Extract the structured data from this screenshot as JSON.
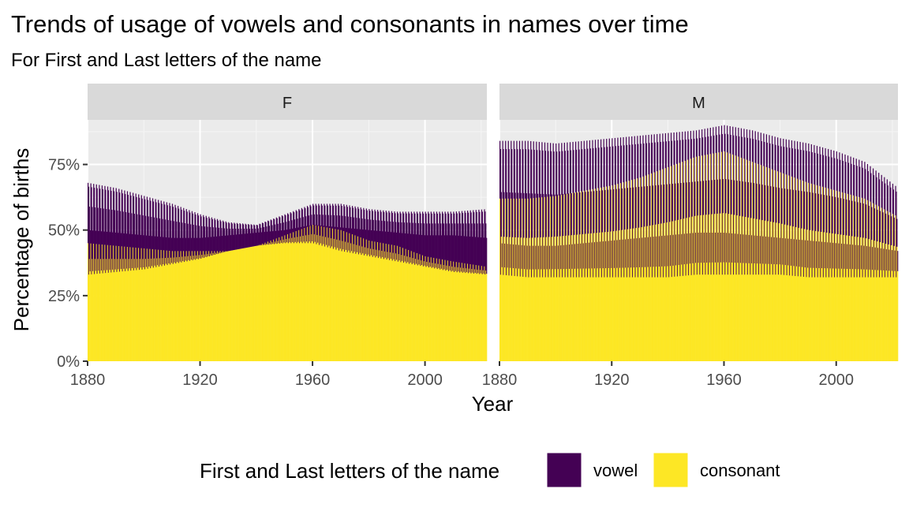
{
  "chart_data": {
    "type": "bar",
    "title": "Trends of usage of vowels and consonants in names over time",
    "subtitle": "For First and Last letters of the name",
    "xlabel": "Year",
    "ylabel": "Percentage of births",
    "xlim": [
      1880,
      2022
    ],
    "ylim": [
      0,
      0.92
    ],
    "x_ticks": [
      1880,
      1920,
      1960,
      2000
    ],
    "x_tick_labels": [
      "1880",
      "1920",
      "1960",
      "2000"
    ],
    "y_ticks": [
      0,
      0.25,
      0.5,
      0.75
    ],
    "y_tick_labels": [
      "0%",
      "25%",
      "50%",
      "75%"
    ],
    "stacked": true,
    "grid": true,
    "legend": {
      "title": "First and Last letters of the name",
      "position": "bottom",
      "entries": [
        {
          "label": "vowel",
          "color": "#440154"
        },
        {
          "label": "consonant",
          "color": "#FDE725"
        }
      ]
    },
    "colors": {
      "vowel": "#440154",
      "consonant": "#FDE725",
      "panel_bg": "#EBEBEB",
      "strip_bg": "#D9D9D9",
      "grid": "#FFFFFF"
    },
    "panels": [
      {
        "label": "F",
        "knots": {
          "x": [
            1880,
            1890,
            1900,
            1910,
            1920,
            1930,
            1940,
            1950,
            1960,
            1970,
            1980,
            1990,
            2000,
            2010,
            2022
          ],
          "consonant_low": [
            0.33,
            0.34,
            0.35,
            0.37,
            0.39,
            0.42,
            0.44,
            0.45,
            0.45,
            0.42,
            0.4,
            0.38,
            0.36,
            0.34,
            0.33
          ],
          "consonant_high": [
            0.45,
            0.44,
            0.43,
            0.42,
            0.42,
            0.42,
            0.44,
            0.48,
            0.52,
            0.5,
            0.46,
            0.44,
            0.4,
            0.38,
            0.36
          ],
          "total_low": [
            0.5,
            0.49,
            0.48,
            0.47,
            0.47,
            0.48,
            0.49,
            0.5,
            0.52,
            0.51,
            0.5,
            0.49,
            0.48,
            0.48,
            0.47
          ],
          "total_high": [
            0.68,
            0.66,
            0.63,
            0.6,
            0.56,
            0.53,
            0.52,
            0.56,
            0.6,
            0.6,
            0.58,
            0.57,
            0.57,
            0.57,
            0.58
          ]
        }
      },
      {
        "label": "M",
        "knots": {
          "x": [
            1880,
            1890,
            1900,
            1910,
            1920,
            1930,
            1940,
            1950,
            1960,
            1970,
            1980,
            1990,
            2000,
            2010,
            2022
          ],
          "consonant_low": [
            0.33,
            0.32,
            0.32,
            0.32,
            0.32,
            0.32,
            0.32,
            0.33,
            0.33,
            0.33,
            0.33,
            0.32,
            0.32,
            0.32,
            0.32
          ],
          "consonant_high": [
            0.62,
            0.62,
            0.63,
            0.65,
            0.67,
            0.7,
            0.74,
            0.78,
            0.8,
            0.76,
            0.72,
            0.68,
            0.65,
            0.62,
            0.55
          ],
          "total_low": [
            0.45,
            0.44,
            0.44,
            0.45,
            0.46,
            0.47,
            0.48,
            0.49,
            0.49,
            0.48,
            0.47,
            0.46,
            0.45,
            0.44,
            0.42
          ],
          "total_high": [
            0.84,
            0.84,
            0.83,
            0.84,
            0.85,
            0.86,
            0.87,
            0.88,
            0.9,
            0.88,
            0.85,
            0.83,
            0.8,
            0.76,
            0.66
          ]
        }
      }
    ]
  }
}
